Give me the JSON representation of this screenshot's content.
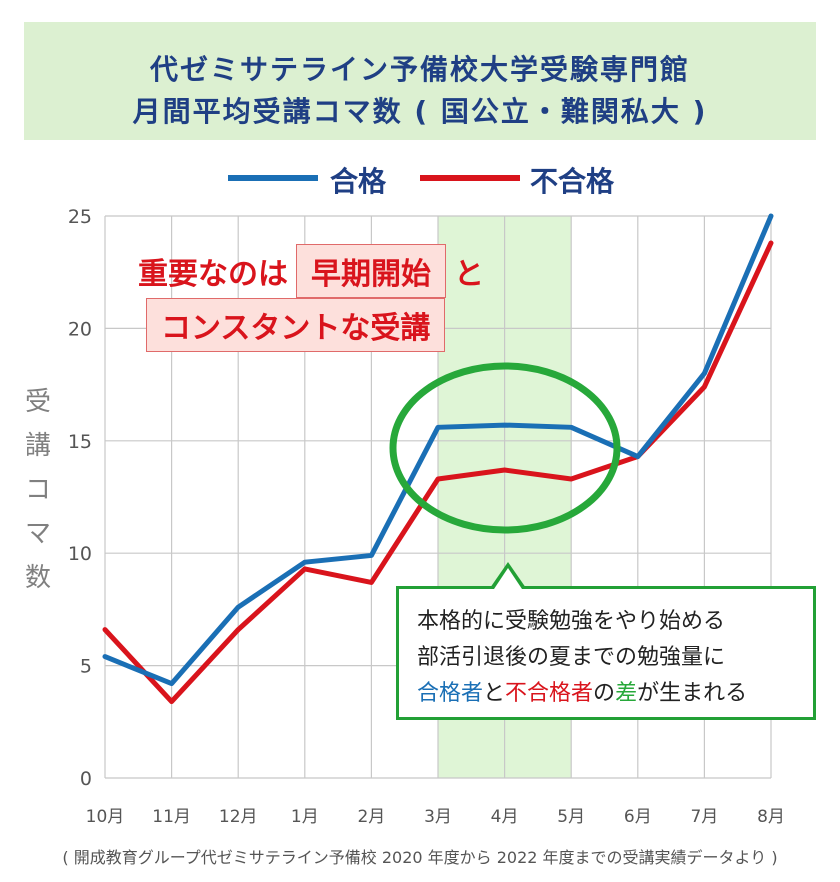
{
  "title": {
    "line1": "代ゼミサテライン予備校大学受験専門館",
    "line2": "月間平均受講コマ数 ( 国公立・難関私大 )"
  },
  "legend": {
    "pass": "合格",
    "fail": "不合格"
  },
  "ylabel_chars": [
    "受",
    "講",
    "コ",
    "マ",
    "数"
  ],
  "callout": {
    "part1": "重要なのは",
    "highlight1": "早期開始",
    "part2": "と",
    "highlight2": "コンスタントな受講"
  },
  "annotation": {
    "line1": "本格的に受験勉強をやり始める",
    "line2": "部活引退後の夏までの勉強量に",
    "line3_a": "合格者",
    "line3_b": "と",
    "line3_c": "不合格者",
    "line3_d": "の",
    "line3_e": "差",
    "line3_f": "が生まれる"
  },
  "footer": "( 開成教育グループ代ゼミサテライン予備校 2020 年度から 2022 年度までの受講実績データより )",
  "colors": {
    "pass": "#1a6fb5",
    "fail": "#d9141c",
    "highlight_band": "#dff5d6",
    "circle": "#27a83a",
    "title_bg": "#dcf0d1",
    "title_text": "#1f3f84"
  },
  "chart_data": {
    "type": "line",
    "title": "代ゼミサテライン予備校大学受験専門館 月間平均受講コマ数 ( 国公立・難関私大 )",
    "xlabel": "",
    "ylabel": "受講コマ数",
    "categories": [
      "10月",
      "11月",
      "12月",
      "1月",
      "2月",
      "3月",
      "4月",
      "5月",
      "6月",
      "7月",
      "8月"
    ],
    "ylim": [
      0,
      25
    ],
    "yticks": [
      0,
      5,
      10,
      15,
      20,
      25
    ],
    "grid": true,
    "legend_position": "top",
    "highlight_range": [
      "3月",
      "5月"
    ],
    "series": [
      {
        "name": "合格",
        "color": "#1a6fb5",
        "values": [
          5.4,
          4.2,
          7.6,
          9.6,
          9.9,
          15.6,
          15.7,
          15.6,
          14.3,
          18.0,
          25.0
        ]
      },
      {
        "name": "不合格",
        "color": "#d9141c",
        "values": [
          6.6,
          3.4,
          6.6,
          9.3,
          8.7,
          13.3,
          13.7,
          13.3,
          14.3,
          17.4,
          23.8
        ]
      }
    ]
  }
}
